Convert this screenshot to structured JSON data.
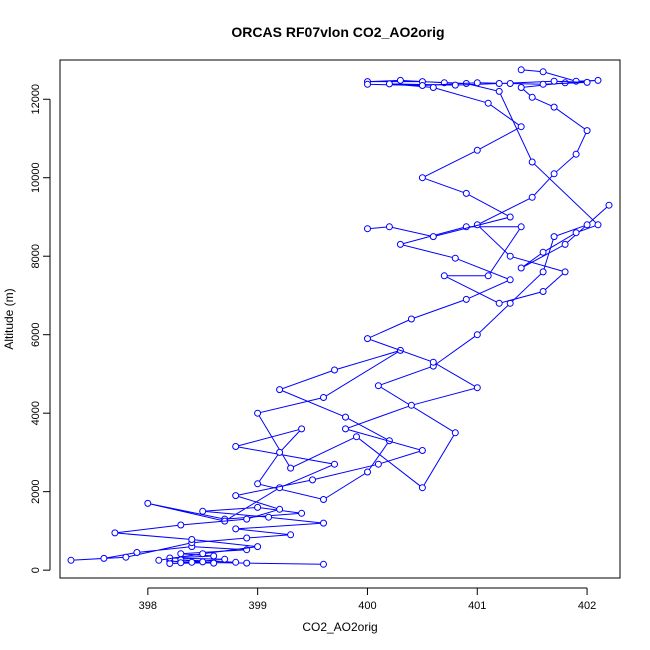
{
  "chart_data": {
    "type": "line",
    "title": "ORCAS RF07vlon CO2_AO2orig",
    "xlabel": "CO2_AO2orig",
    "ylabel": "Altitude (m)",
    "xlim": [
      397.2,
      402.3
    ],
    "ylim": [
      -200,
      13000
    ],
    "xticks": [
      398,
      399,
      400,
      401,
      402
    ],
    "yticks": [
      0,
      2000,
      4000,
      6000,
      8000,
      10000,
      12000
    ],
    "grid": false,
    "legend": "none",
    "colors": {
      "series": "#0000ff",
      "frame": "#000000"
    },
    "marker": "open-circle",
    "series": [
      {
        "x": [
          399.6,
          398.9,
          398.4,
          398.2,
          398.6,
          398.3,
          398.8,
          398.2,
          398.5,
          398.3,
          398.7,
          398.2,
          398.6,
          398.3,
          398.9,
          398.4,
          397.9,
          397.6,
          397.3,
          397.8,
          398.4,
          398.9,
          399.3,
          398.8,
          399.6,
          399.1,
          398.5,
          399.0,
          399.4,
          398.7,
          398.0,
          398.7,
          399.2,
          399.7,
          398.8,
          399.4,
          399.2,
          399.0,
          399.6,
          400.0,
          400.2,
          399.8,
          399.2,
          399.7,
          400.3,
          399.6,
          399.0,
          399.3,
          399.9,
          400.5,
          400.8,
          400.1,
          400.6,
          401.0,
          401.3,
          401.6,
          401.7,
          402.0,
          402.2,
          401.8,
          401.4,
          401.6,
          401.9,
          402.1,
          401.5,
          401.2,
          400.9,
          400.5,
          400.0,
          400.3,
          400.7
        ],
        "y": [
          150,
          180,
          200,
          230,
          180,
          260,
          200,
          170,
          210,
          190,
          280,
          310,
          360,
          420,
          520,
          600,
          450,
          300,
          250,
          330,
          700,
          820,
          900,
          1050,
          1200,
          1350,
          1500,
          1600,
          1450,
          1300,
          1700,
          1250,
          2100,
          2700,
          3150,
          3600,
          3000,
          2200,
          1800,
          2500,
          3300,
          3900,
          4600,
          5100,
          5600,
          4400,
          4000,
          2600,
          3400,
          2100,
          3500,
          4700,
          5200,
          6000,
          6800,
          7600,
          8500,
          8800,
          9300,
          8300,
          7700,
          8100,
          8600,
          8800,
          10400,
          12200,
          12400,
          12450,
          12450,
          12480,
          12420
        ]
      },
      {
        "x": [
          398.1,
          398.5,
          399.0,
          398.4,
          397.7,
          398.3,
          398.9,
          399.2,
          398.8,
          399.5,
          400.1,
          400.5,
          399.8,
          400.4,
          401.0,
          400.6,
          400.0,
          400.4,
          400.9,
          401.3,
          400.8,
          400.3,
          400.9,
          401.4,
          401.1,
          400.7,
          401.2,
          401.6,
          401.8,
          401.3,
          401.0,
          401.5,
          401.7,
          401.9,
          402.0,
          401.7,
          401.5,
          401.4,
          401.8,
          402.1,
          401.9,
          401.6,
          401.4
        ],
        "y": [
          250,
          420,
          600,
          780,
          950,
          1150,
          1300,
          1550,
          1900,
          2300,
          2700,
          3050,
          3600,
          4200,
          4650,
          5300,
          5900,
          6400,
          6900,
          7400,
          7950,
          8300,
          8750,
          8750,
          7500,
          7500,
          6800,
          7100,
          7600,
          8000,
          8800,
          9500,
          10100,
          10600,
          11200,
          11800,
          12050,
          12300,
          12420,
          12480,
          12460,
          12700,
          12750
        ]
      },
      {
        "x": [
          400.0,
          400.5,
          401.0,
          401.3,
          401.6,
          402.0,
          401.7,
          401.2,
          400.8,
          400.2,
          400.6,
          401.1,
          401.4,
          401.0,
          400.5,
          400.9,
          401.3,
          400.6,
          400.2,
          400.0
        ],
        "y": [
          12380,
          12350,
          12420,
          12400,
          12380,
          12430,
          12460,
          12400,
          12360,
          12390,
          12300,
          11900,
          11300,
          10700,
          10000,
          9600,
          9000,
          8500,
          8750,
          8700
        ]
      }
    ]
  }
}
